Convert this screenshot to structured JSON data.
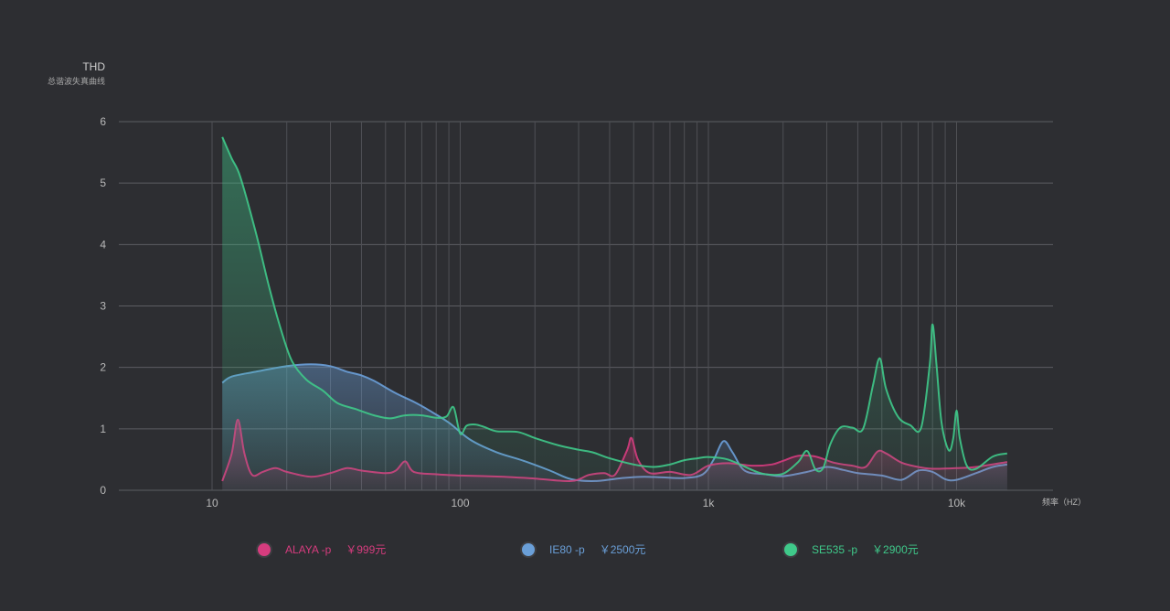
{
  "chart_data": {
    "type": "area",
    "title": "THD",
    "subtitle": "总谐波失真曲线",
    "xlabel": "频率（HZ）",
    "x_scale": "log",
    "xlim": [
      4,
      20000
    ],
    "ylim": [
      0,
      6
    ],
    "yticks": [
      "0",
      "1",
      "2",
      "3",
      "4",
      "5",
      "6"
    ],
    "xticks": [
      {
        "value": 10,
        "label": "10"
      },
      {
        "value": 100,
        "label": "100"
      },
      {
        "value": 1000,
        "label": "1k"
      },
      {
        "value": 10000,
        "label": "10k"
      }
    ],
    "grid": true,
    "legend_position": "bottom",
    "series": [
      {
        "name": "IE80  -p",
        "price": "￥2500元",
        "color": "#6a9fd8",
        "points": [
          [
            11,
            1.75
          ],
          [
            12,
            1.85
          ],
          [
            15,
            1.93
          ],
          [
            20,
            2.02
          ],
          [
            25,
            2.05
          ],
          [
            30,
            2.02
          ],
          [
            35,
            1.93
          ],
          [
            40,
            1.87
          ],
          [
            45,
            1.78
          ],
          [
            55,
            1.58
          ],
          [
            65,
            1.44
          ],
          [
            75,
            1.3
          ],
          [
            90,
            1.1
          ],
          [
            110,
            0.82
          ],
          [
            140,
            0.62
          ],
          [
            180,
            0.48
          ],
          [
            230,
            0.32
          ],
          [
            280,
            0.18
          ],
          [
            350,
            0.15
          ],
          [
            450,
            0.2
          ],
          [
            550,
            0.22
          ],
          [
            650,
            0.21
          ],
          [
            800,
            0.2
          ],
          [
            950,
            0.26
          ],
          [
            1050,
            0.5
          ],
          [
            1150,
            0.8
          ],
          [
            1250,
            0.62
          ],
          [
            1400,
            0.32
          ],
          [
            1700,
            0.26
          ],
          [
            2000,
            0.23
          ],
          [
            2500,
            0.3
          ],
          [
            3000,
            0.38
          ],
          [
            3500,
            0.33
          ],
          [
            4000,
            0.28
          ],
          [
            5000,
            0.24
          ],
          [
            6000,
            0.17
          ],
          [
            7000,
            0.32
          ],
          [
            8000,
            0.3
          ],
          [
            9000,
            0.18
          ],
          [
            10000,
            0.17
          ],
          [
            12000,
            0.28
          ],
          [
            14000,
            0.38
          ],
          [
            16000,
            0.42
          ]
        ]
      },
      {
        "name": "ALAYA  -p",
        "price": "￥999元",
        "color": "#d63c7e",
        "points": [
          [
            11,
            0.15
          ],
          [
            12,
            0.6
          ],
          [
            12.7,
            1.15
          ],
          [
            13.5,
            0.6
          ],
          [
            14.5,
            0.25
          ],
          [
            16,
            0.3
          ],
          [
            18,
            0.36
          ],
          [
            20,
            0.3
          ],
          [
            25,
            0.22
          ],
          [
            30,
            0.28
          ],
          [
            35,
            0.36
          ],
          [
            40,
            0.32
          ],
          [
            50,
            0.28
          ],
          [
            55,
            0.32
          ],
          [
            60,
            0.47
          ],
          [
            65,
            0.3
          ],
          [
            80,
            0.26
          ],
          [
            100,
            0.24
          ],
          [
            150,
            0.22
          ],
          [
            200,
            0.19
          ],
          [
            280,
            0.15
          ],
          [
            330,
            0.25
          ],
          [
            380,
            0.28
          ],
          [
            420,
            0.25
          ],
          [
            470,
            0.65
          ],
          [
            490,
            0.85
          ],
          [
            520,
            0.5
          ],
          [
            580,
            0.28
          ],
          [
            700,
            0.3
          ],
          [
            850,
            0.25
          ],
          [
            1000,
            0.4
          ],
          [
            1200,
            0.44
          ],
          [
            1500,
            0.4
          ],
          [
            1800,
            0.42
          ],
          [
            2000,
            0.48
          ],
          [
            2300,
            0.56
          ],
          [
            2700,
            0.55
          ],
          [
            3200,
            0.45
          ],
          [
            3800,
            0.4
          ],
          [
            4300,
            0.38
          ],
          [
            4800,
            0.63
          ],
          [
            5200,
            0.6
          ],
          [
            6000,
            0.45
          ],
          [
            7000,
            0.38
          ],
          [
            8000,
            0.35
          ],
          [
            10000,
            0.36
          ],
          [
            12000,
            0.38
          ],
          [
            16000,
            0.46
          ]
        ]
      },
      {
        "name": "SE535  -p",
        "price": "￥2900元",
        "color": "#3fc98a",
        "points": [
          [
            11,
            5.75
          ],
          [
            12,
            5.4
          ],
          [
            13,
            5.1
          ],
          [
            15,
            4.2
          ],
          [
            17,
            3.3
          ],
          [
            19,
            2.6
          ],
          [
            21,
            2.1
          ],
          [
            24,
            1.8
          ],
          [
            28,
            1.62
          ],
          [
            32,
            1.42
          ],
          [
            38,
            1.32
          ],
          [
            45,
            1.22
          ],
          [
            52,
            1.17
          ],
          [
            60,
            1.22
          ],
          [
            70,
            1.22
          ],
          [
            80,
            1.18
          ],
          [
            88,
            1.2
          ],
          [
            94,
            1.35
          ],
          [
            100,
            0.92
          ],
          [
            106,
            1.05
          ],
          [
            115,
            1.07
          ],
          [
            125,
            1.03
          ],
          [
            140,
            0.96
          ],
          [
            170,
            0.95
          ],
          [
            200,
            0.85
          ],
          [
            250,
            0.73
          ],
          [
            300,
            0.66
          ],
          [
            340,
            0.62
          ],
          [
            400,
            0.52
          ],
          [
            500,
            0.42
          ],
          [
            600,
            0.38
          ],
          [
            700,
            0.42
          ],
          [
            800,
            0.49
          ],
          [
            900,
            0.52
          ],
          [
            1000,
            0.54
          ],
          [
            1200,
            0.5
          ],
          [
            1500,
            0.33
          ],
          [
            1700,
            0.26
          ],
          [
            2000,
            0.27
          ],
          [
            2300,
            0.46
          ],
          [
            2500,
            0.64
          ],
          [
            2700,
            0.34
          ],
          [
            2900,
            0.36
          ],
          [
            3100,
            0.75
          ],
          [
            3400,
            1.02
          ],
          [
            3800,
            1.02
          ],
          [
            4200,
            1.0
          ],
          [
            4600,
            1.7
          ],
          [
            4900,
            2.15
          ],
          [
            5200,
            1.65
          ],
          [
            5800,
            1.2
          ],
          [
            6500,
            1.06
          ],
          [
            7200,
            1.02
          ],
          [
            7800,
            2.05
          ],
          [
            8000,
            2.7
          ],
          [
            8300,
            2.05
          ],
          [
            8700,
            1.1
          ],
          [
            9300,
            0.65
          ],
          [
            9700,
            0.85
          ],
          [
            10000,
            1.3
          ],
          [
            10300,
            0.85
          ],
          [
            11000,
            0.4
          ],
          [
            12000,
            0.35
          ],
          [
            14000,
            0.55
          ],
          [
            16000,
            0.6
          ]
        ]
      }
    ]
  }
}
